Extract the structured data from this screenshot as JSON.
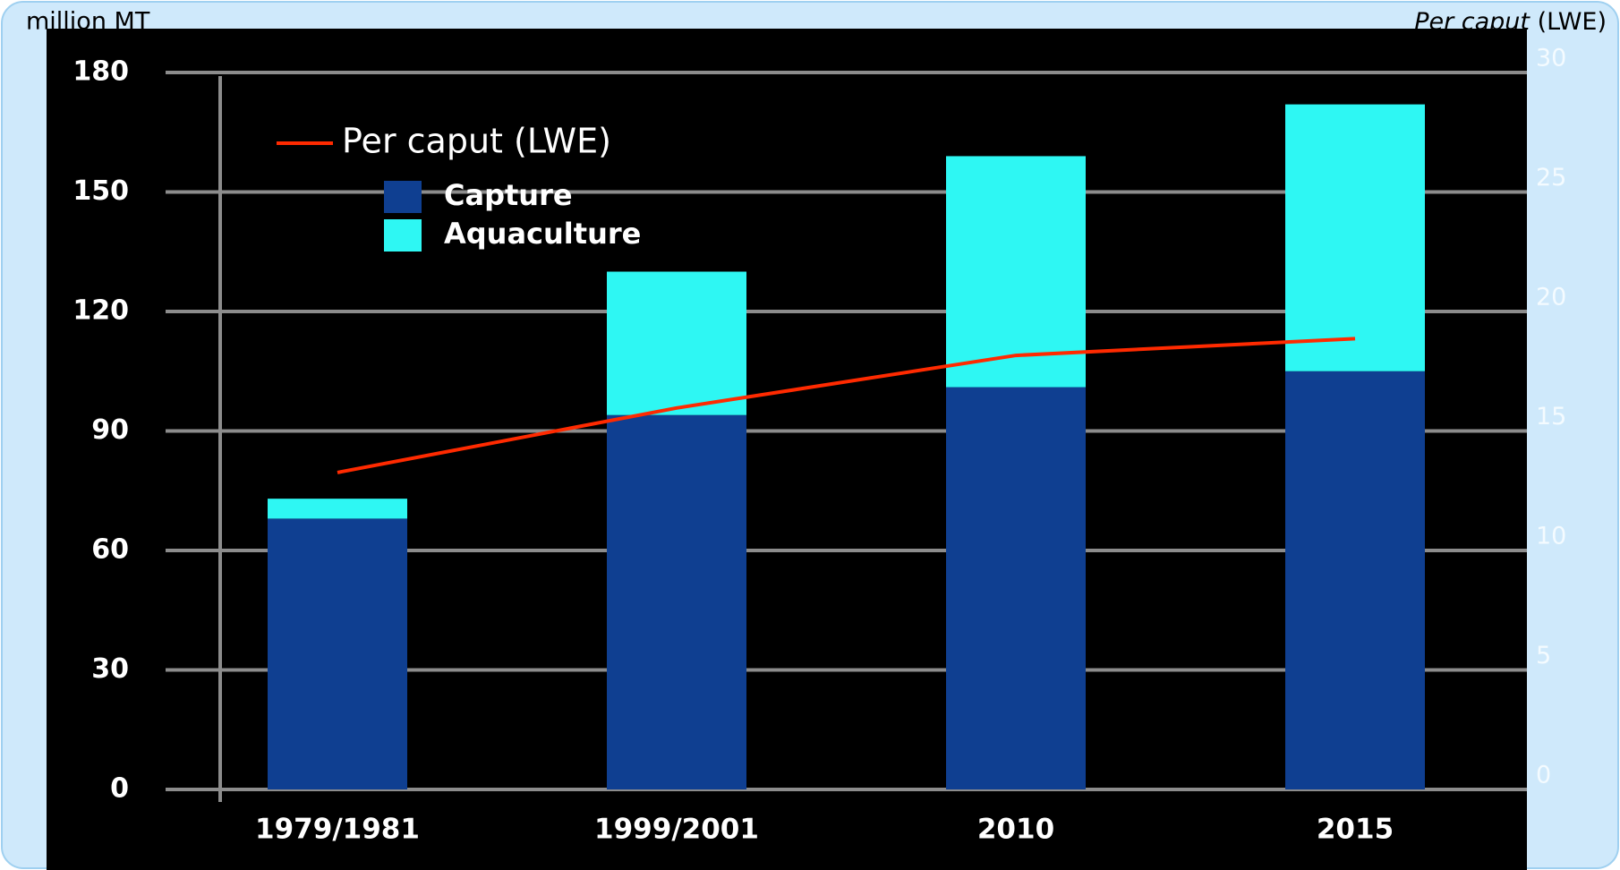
{
  "chart_data": {
    "type": "bar",
    "y_label": "million MT",
    "y2_label_italic": "Per caput",
    "y2_label_rest": "(LWE)",
    "categories": [
      "1979/1981",
      "1999/2001",
      "2010",
      "2015"
    ],
    "stacked": true,
    "series": [
      {
        "name": "Capture",
        "color": "#0f3f91",
        "values": [
          68,
          94,
          101,
          105
        ]
      },
      {
        "name": "Aquaculture",
        "color": "#2ef7f3",
        "values": [
          5,
          36,
          58,
          67
        ]
      },
      {
        "name": "Per caput (LWE)",
        "color": "#ff2a00",
        "type": "line",
        "axis": "y2",
        "values": [
          12.7,
          15.4,
          17.6,
          18.3
        ]
      }
    ],
    "ylim": [
      0,
      180
    ],
    "yticks": [
      0,
      30,
      60,
      90,
      120,
      150,
      180
    ],
    "y2lim": [
      0,
      30
    ],
    "y2ticks": [
      0,
      5,
      10,
      15,
      20,
      25,
      30
    ],
    "grid": true
  }
}
